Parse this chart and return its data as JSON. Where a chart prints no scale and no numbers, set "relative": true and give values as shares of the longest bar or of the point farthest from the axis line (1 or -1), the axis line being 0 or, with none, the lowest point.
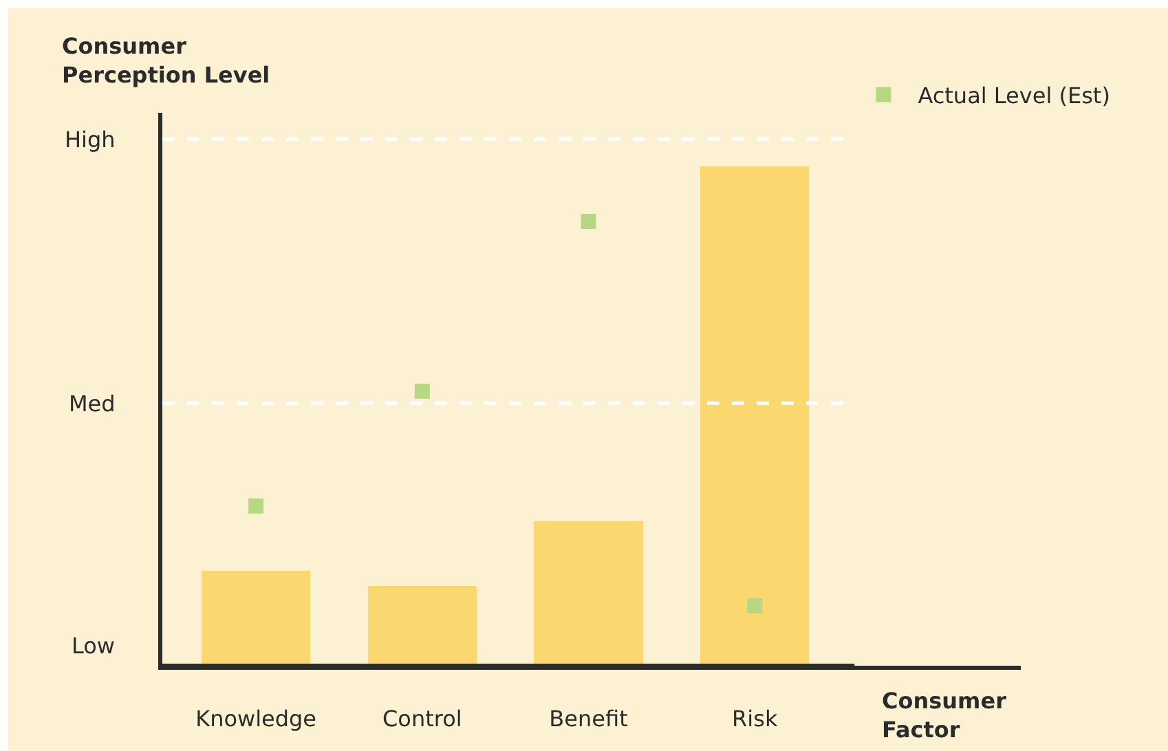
{
  "chart_data": {
    "type": "bar",
    "relative": true,
    "ylabel": "Consumer\nPerception Level",
    "xlabel": "Consumer\nFactor",
    "categories": [
      "Knowledge",
      "Control",
      "Benefit",
      "Risk"
    ],
    "series": [
      {
        "color": "#fbd770",
        "values": [
          0.19,
          0.16,
          0.29,
          1
        ]
      },
      {
        "type": "scatter",
        "name": "Actual Level (Est)",
        "color": "#b8d783",
        "x": [
          "Knowledge",
          "Control",
          "Benefit",
          "Risk"
        ],
        "values": [
          0.32,
          0.55,
          0.89,
          0.12
        ]
      }
    ],
    "ref_lines": [
      {
        "axis": "y",
        "value": 0,
        "label": "Low",
        "color": "#2b2b2b",
        "line_style": "solid"
      },
      {
        "axis": "y",
        "value": 0.526,
        "label": "Med",
        "color": "#ffffff",
        "line_style": "dashed"
      },
      {
        "axis": "y",
        "value": 1.055,
        "label": "High",
        "color": "#ffffff",
        "line_style": "dashed"
      }
    ],
    "marker": "square",
    "legend": "top right"
  }
}
